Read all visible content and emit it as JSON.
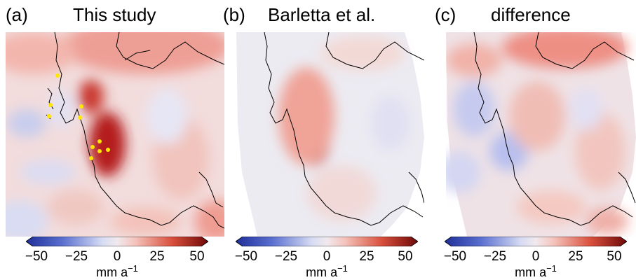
{
  "panels": [
    {
      "letter": "(a)",
      "title": "This study"
    },
    {
      "letter": "(b)",
      "title": "Barletta et al."
    },
    {
      "letter": "(c)",
      "title": "difference"
    }
  ],
  "colorbar": {
    "ticks": [
      "−50",
      "−25",
      "0",
      "25",
      "50"
    ],
    "unit": "mm a",
    "unit_exp": "−1",
    "colormap": [
      "#1f2f99",
      "#5a6fd0",
      "#b9c3ee",
      "#efe8ee",
      "#f4b9b0",
      "#d9503c",
      "#7a0a0a"
    ]
  },
  "markers": {
    "color": "#ffe600",
    "count": 10
  }
}
